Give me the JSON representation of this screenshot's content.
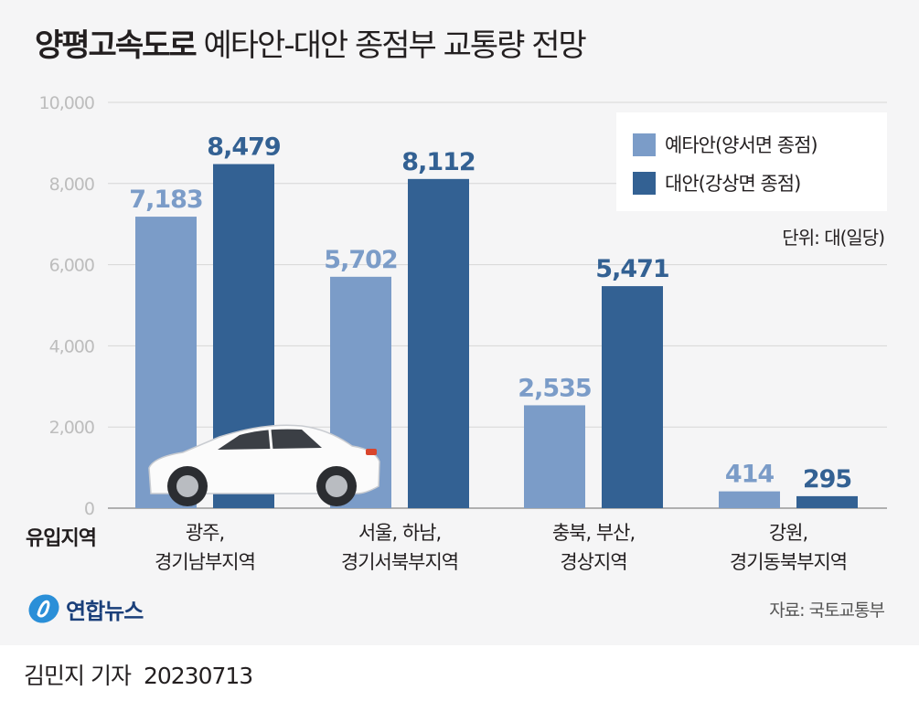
{
  "title": {
    "bold": "양평고속도로",
    "rest": "예타안-대안 종점부 교통량 전망"
  },
  "unit": "단위: 대(일당)",
  "source": "자료: 국토교통부",
  "logo": "연합뉴스",
  "byline": {
    "reporter": "김민지 기자",
    "date": "20230713"
  },
  "colors": {
    "series1": "#7b9cc8",
    "series2": "#336193",
    "background": "#f5f5f6"
  },
  "chart_data": {
    "type": "bar",
    "xlabel": "유입지역",
    "categories": [
      "광주,\n경기남부지역",
      "서울, 하남,\n경기서북부지역",
      "충북, 부산,\n경상지역",
      "강원,\n경기동북부지역"
    ],
    "series": [
      {
        "name": "예타안(양서면 종점)",
        "values": [
          7183,
          5702,
          2535,
          414
        ]
      },
      {
        "name": "대안(강상면 종점)",
        "values": [
          8479,
          8112,
          5471,
          295
        ]
      }
    ],
    "value_labels": [
      [
        "7,183",
        "5,702",
        "2,535",
        "414"
      ],
      [
        "8,479",
        "8,112",
        "5,471",
        "295"
      ]
    ],
    "ylim": [
      0,
      10000
    ],
    "yticks": [
      "0",
      "2,000",
      "4,000",
      "6,000",
      "8,000",
      "10,000"
    ],
    "grid": true,
    "legend": "top-right"
  }
}
